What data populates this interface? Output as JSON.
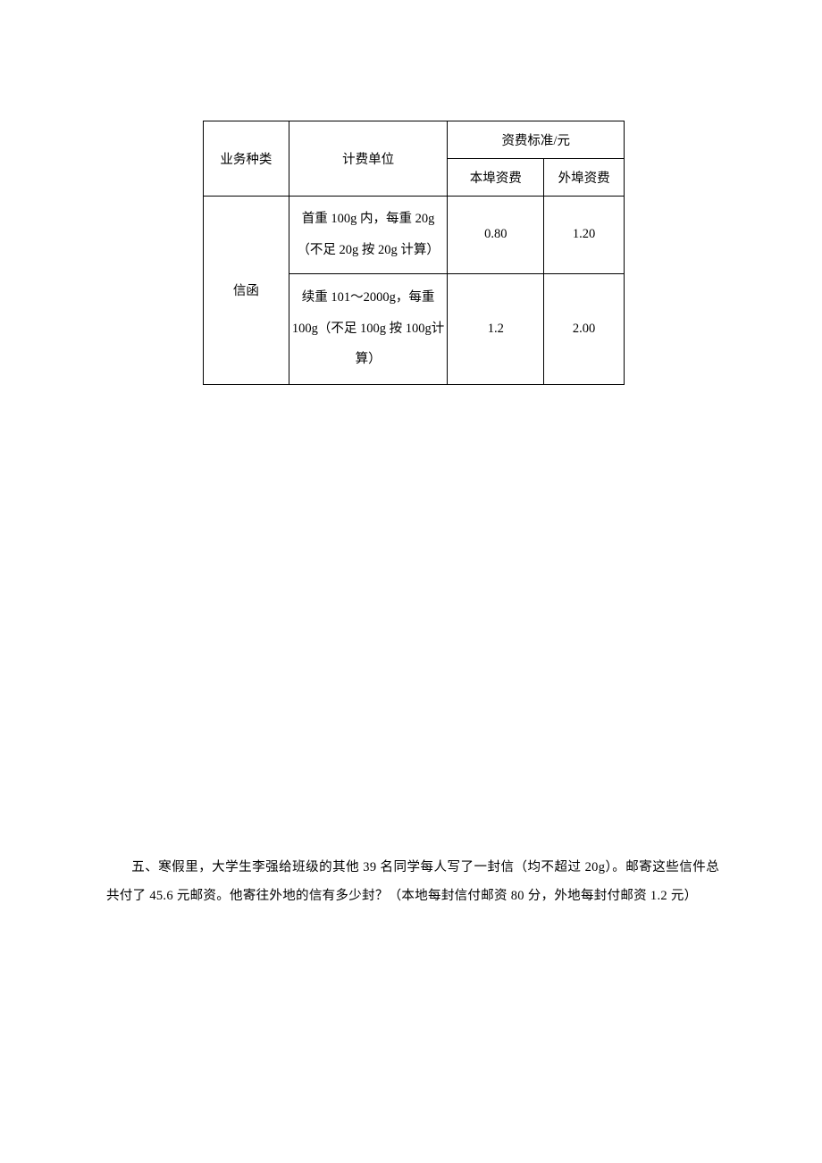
{
  "table": {
    "headers": {
      "col1": "业务种类",
      "col2": "计费单位",
      "col3_merged": "资费标准/元",
      "col3_sub1": "本埠资费",
      "col3_sub2": "外埠资费"
    },
    "rows": [
      {
        "category": "信函",
        "unit": "首重 100g 内，每重 20g（不足 20g 按 20g 计算）",
        "local": "0.80",
        "remote": "1.20"
      },
      {
        "unit": "续重 101～2000g，每重100g（不足 100g 按 100g计算）",
        "local": "1.2",
        "remote": "2.00"
      }
    ],
    "styling": {
      "border_color": "#000000",
      "background_color": "#ffffff",
      "font_size": 14.5,
      "text_align": "center"
    }
  },
  "question": {
    "text": "五、寒假里，大学生李强给班级的其他 39 名同学每人写了一封信（均不超过 20g）。邮寄这些信件总共付了 45.6 元邮资。他寄往外地的信有多少封？（本地每封信付邮资 80 分，外地每封付邮资 1.2 元）",
    "styling": {
      "font_size": 14.5,
      "line_height": 2.25,
      "text_color": "#000000"
    }
  }
}
